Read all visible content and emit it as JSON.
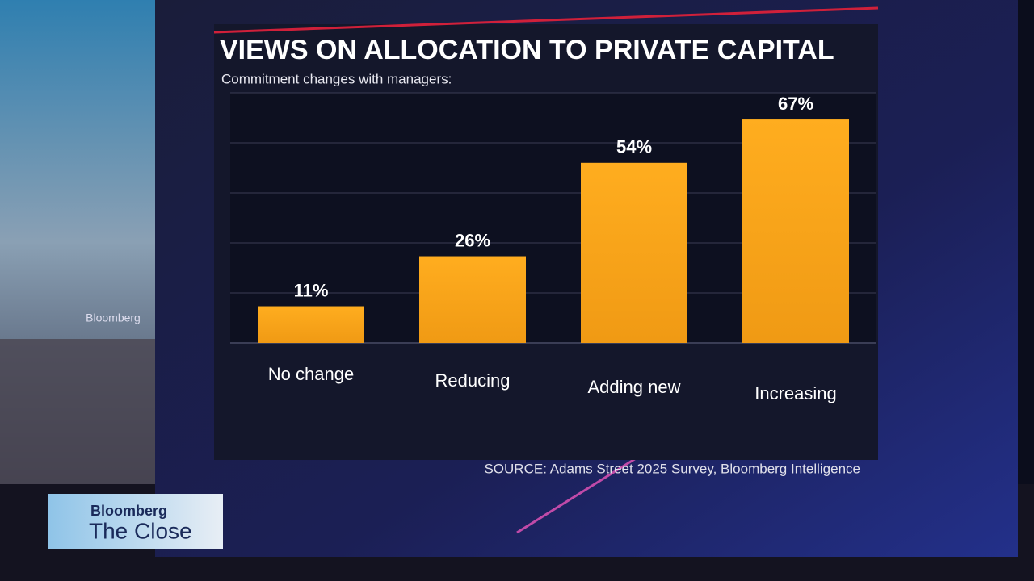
{
  "chart_data": {
    "type": "bar",
    "title": "VIEWS ON ALLOCATION TO PRIVATE CAPITAL",
    "subtitle": "Commitment changes with managers:",
    "categories": [
      "No change",
      "Reducing",
      "Adding new",
      "Increasing"
    ],
    "values": [
      11,
      26,
      54,
      67
    ],
    "value_labels": [
      "11%",
      "26%",
      "54%",
      "67%"
    ],
    "color": "#f7a21b",
    "ylim": [
      0,
      75
    ],
    "grid": true,
    "source": "SOURCE: Adams Street 2025 Survey, Bloomberg Intelligence"
  },
  "overlay": {
    "background_sign": "Bloomberg",
    "brand": "Bloomberg",
    "program": "The Close"
  }
}
